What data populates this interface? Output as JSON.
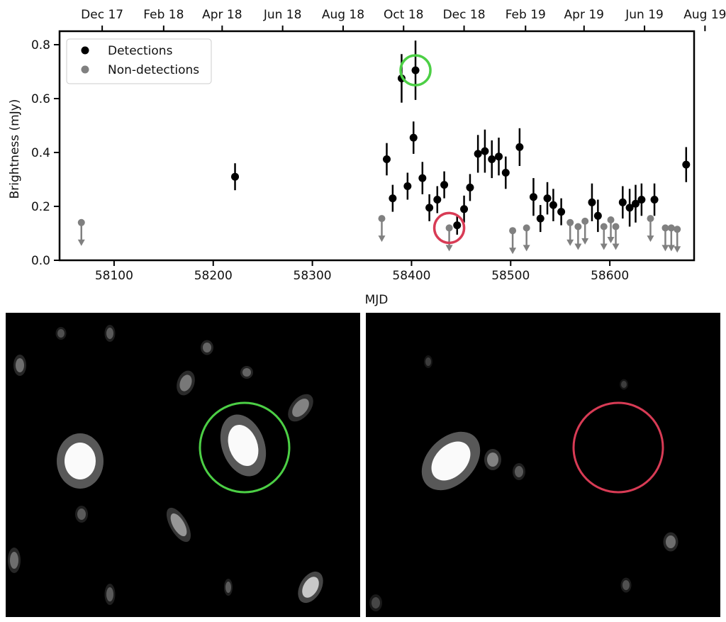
{
  "chart_data": {
    "type": "scatter",
    "xlabel": "MJD",
    "ylabel": "Brightness (mJy)",
    "xlim": [
      58045,
      58685
    ],
    "ylim": [
      0.0,
      0.85
    ],
    "x_ticks": [
      58100,
      58200,
      58300,
      58400,
      58500,
      58600
    ],
    "x_tick_labels": [
      "58100",
      "58200",
      "58300",
      "58400",
      "58500",
      "58600"
    ],
    "y_ticks": [
      0.0,
      0.2,
      0.4,
      0.6,
      0.8
    ],
    "y_tick_labels": [
      "0.0",
      "0.2",
      "0.4",
      "0.6",
      "0.8"
    ],
    "top_axis": {
      "tick_mjd": [
        58088,
        58150,
        58209,
        58270,
        58331,
        58392,
        58453,
        58515,
        58574,
        58635,
        58696
      ],
      "labels": [
        "Dec 17",
        "Feb 18",
        "Apr 18",
        "Jun 18",
        "Aug 18",
        "Oct 18",
        "Dec 18",
        "Feb 19",
        "Apr 19",
        "Jun 19",
        "Aug 19"
      ]
    },
    "legend": {
      "location": "top-left",
      "entries": [
        {
          "label": "Detections",
          "color": "#000000"
        },
        {
          "label": "Non-detections",
          "color": "#808080"
        }
      ]
    },
    "series": [
      {
        "name": "Detections",
        "color": "#000000",
        "points": [
          {
            "x": 58222,
            "y": 0.31,
            "err": 0.05
          },
          {
            "x": 58375,
            "y": 0.375,
            "err": 0.06
          },
          {
            "x": 58381,
            "y": 0.23,
            "err": 0.05
          },
          {
            "x": 58390,
            "y": 0.675,
            "err": 0.09
          },
          {
            "x": 58396,
            "y": 0.275,
            "err": 0.05
          },
          {
            "x": 58402,
            "y": 0.455,
            "err": 0.06
          },
          {
            "x": 58404,
            "y": 0.705,
            "err": 0.11
          },
          {
            "x": 58411,
            "y": 0.305,
            "err": 0.06
          },
          {
            "x": 58418,
            "y": 0.195,
            "err": 0.05
          },
          {
            "x": 58426,
            "y": 0.225,
            "err": 0.05
          },
          {
            "x": 58433,
            "y": 0.28,
            "err": 0.05
          },
          {
            "x": 58446,
            "y": 0.13,
            "err": 0.035
          },
          {
            "x": 58453,
            "y": 0.19,
            "err": 0.05
          },
          {
            "x": 58459,
            "y": 0.27,
            "err": 0.05
          },
          {
            "x": 58467,
            "y": 0.395,
            "err": 0.07
          },
          {
            "x": 58474,
            "y": 0.405,
            "err": 0.08
          },
          {
            "x": 58481,
            "y": 0.375,
            "err": 0.07
          },
          {
            "x": 58488,
            "y": 0.385,
            "err": 0.07
          },
          {
            "x": 58495,
            "y": 0.325,
            "err": 0.06
          },
          {
            "x": 58509,
            "y": 0.42,
            "err": 0.07
          },
          {
            "x": 58523,
            "y": 0.235,
            "err": 0.07
          },
          {
            "x": 58530,
            "y": 0.155,
            "err": 0.05
          },
          {
            "x": 58537,
            "y": 0.23,
            "err": 0.06
          },
          {
            "x": 58543,
            "y": 0.205,
            "err": 0.06
          },
          {
            "x": 58551,
            "y": 0.18,
            "err": 0.05
          },
          {
            "x": 58582,
            "y": 0.215,
            "err": 0.07
          },
          {
            "x": 58588,
            "y": 0.165,
            "err": 0.06
          },
          {
            "x": 58613,
            "y": 0.215,
            "err": 0.06
          },
          {
            "x": 58620,
            "y": 0.195,
            "err": 0.07
          },
          {
            "x": 58626,
            "y": 0.21,
            "err": 0.07
          },
          {
            "x": 58632,
            "y": 0.225,
            "err": 0.06
          },
          {
            "x": 58645,
            "y": 0.225,
            "err": 0.06
          },
          {
            "x": 58677,
            "y": 0.355,
            "err": 0.065
          }
        ]
      },
      {
        "name": "Non-detections",
        "color": "#808080",
        "points": [
          {
            "x": 58067,
            "y": 0.14
          },
          {
            "x": 58370,
            "y": 0.155
          },
          {
            "x": 58438,
            "y": 0.12
          },
          {
            "x": 58502,
            "y": 0.11
          },
          {
            "x": 58516,
            "y": 0.12
          },
          {
            "x": 58560,
            "y": 0.14
          },
          {
            "x": 58568,
            "y": 0.125
          },
          {
            "x": 58575,
            "y": 0.145
          },
          {
            "x": 58594,
            "y": 0.125
          },
          {
            "x": 58601,
            "y": 0.15
          },
          {
            "x": 58606,
            "y": 0.125
          },
          {
            "x": 58641,
            "y": 0.155
          },
          {
            "x": 58656,
            "y": 0.12
          },
          {
            "x": 58662,
            "y": 0.12
          },
          {
            "x": 58668,
            "y": 0.115
          }
        ]
      }
    ],
    "highlights": [
      {
        "name": "detection-marker",
        "color": "#4ccf45",
        "x": 58404,
        "y": 0.705
      },
      {
        "name": "non-detection-marker",
        "color": "#d83b55",
        "x": 58438,
        "y": 0.12
      }
    ]
  },
  "images": [
    {
      "name": "detection-image",
      "marker_color": "#4ccf45"
    },
    {
      "name": "non-detection-image",
      "marker_color": "#d83b55"
    }
  ]
}
